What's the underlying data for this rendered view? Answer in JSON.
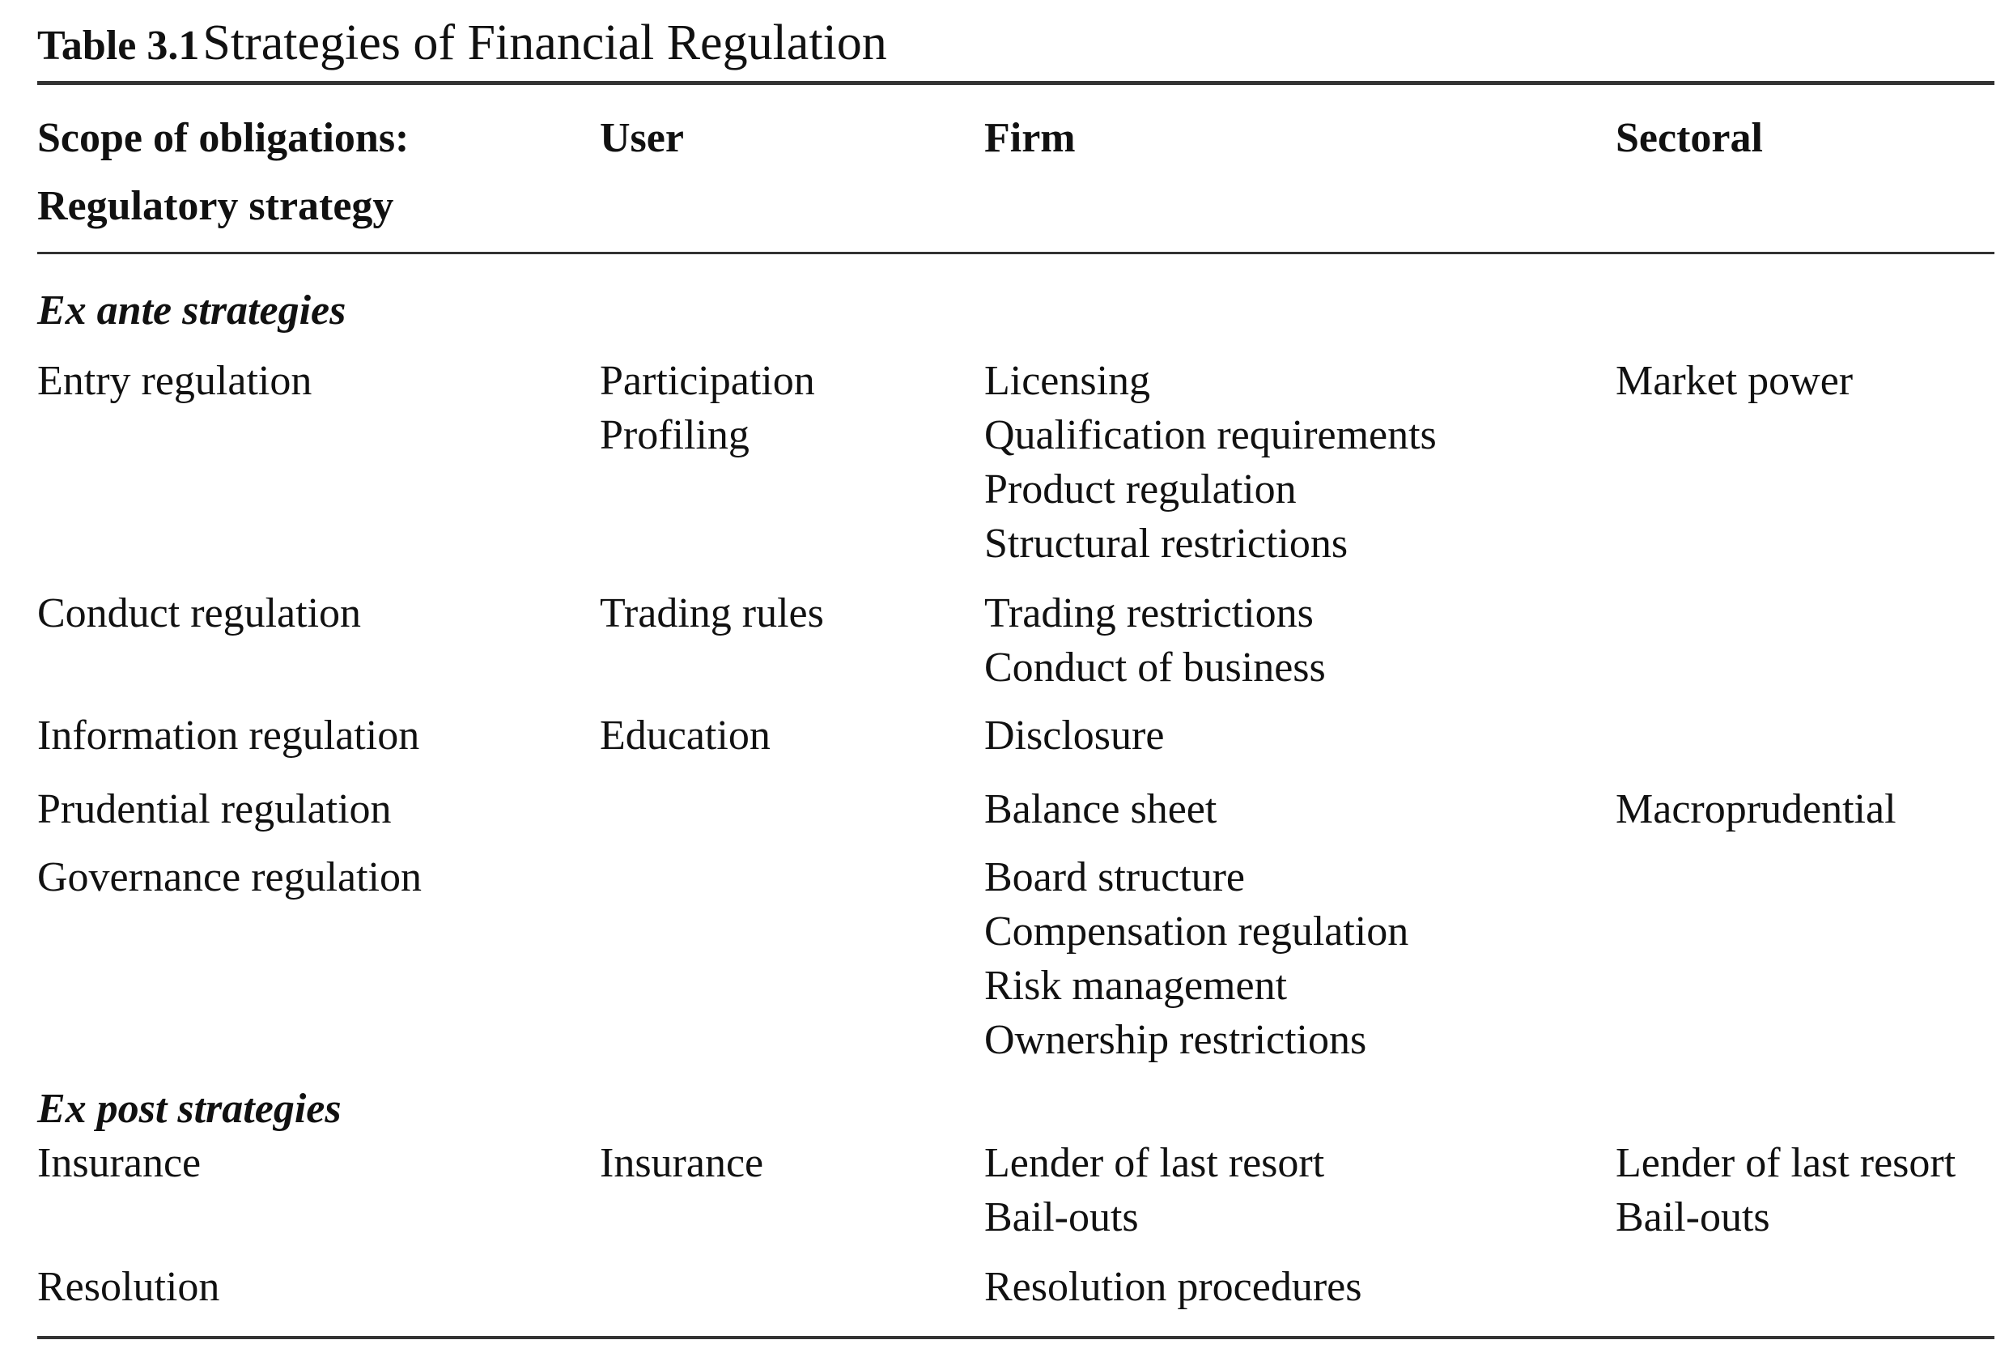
{
  "caption": {
    "label": "Table 3.1",
    "title": "Strategies of Financial Regulation"
  },
  "header": {
    "col0_line1": "Scope of obligations:",
    "col0_line2": "Regulatory strategy",
    "col1": "User",
    "col2": "Firm",
    "col3": "Sectoral"
  },
  "sections": [
    {
      "title": "Ex ante strategies",
      "rows": [
        {
          "strategy": "Entry regulation",
          "user": [
            "Participation",
            "Profiling"
          ],
          "firm": [
            "Licensing",
            "Qualification requirements",
            "Product regulation",
            "Structural restrictions"
          ],
          "sectoral": [
            "Market power"
          ]
        },
        {
          "strategy": "Conduct regulation",
          "user": [
            "Trading rules"
          ],
          "firm": [
            "Trading restrictions",
            "Conduct of business"
          ],
          "sectoral": []
        },
        {
          "strategy": "Information regulation",
          "user": [
            "Education"
          ],
          "firm": [
            "Disclosure"
          ],
          "sectoral": []
        },
        {
          "strategy": "Prudential regulation",
          "user": [],
          "firm": [
            "Balance sheet"
          ],
          "sectoral": [
            "Macroprudential"
          ]
        },
        {
          "strategy": "Governance regulation",
          "user": [],
          "firm": [
            "Board structure",
            "Compensation regulation",
            "Risk management",
            "Ownership restrictions"
          ],
          "sectoral": []
        }
      ]
    },
    {
      "title": "Ex post strategies",
      "rows": [
        {
          "strategy": "Insurance",
          "user": [
            "Insurance"
          ],
          "firm": [
            "Lender of last resort",
            "Bail-outs"
          ],
          "sectoral": [
            "Lender of last resort",
            "Bail-outs"
          ]
        },
        {
          "strategy": "Resolution",
          "user": [],
          "firm": [
            "Resolution procedures"
          ],
          "sectoral": []
        }
      ]
    }
  ]
}
